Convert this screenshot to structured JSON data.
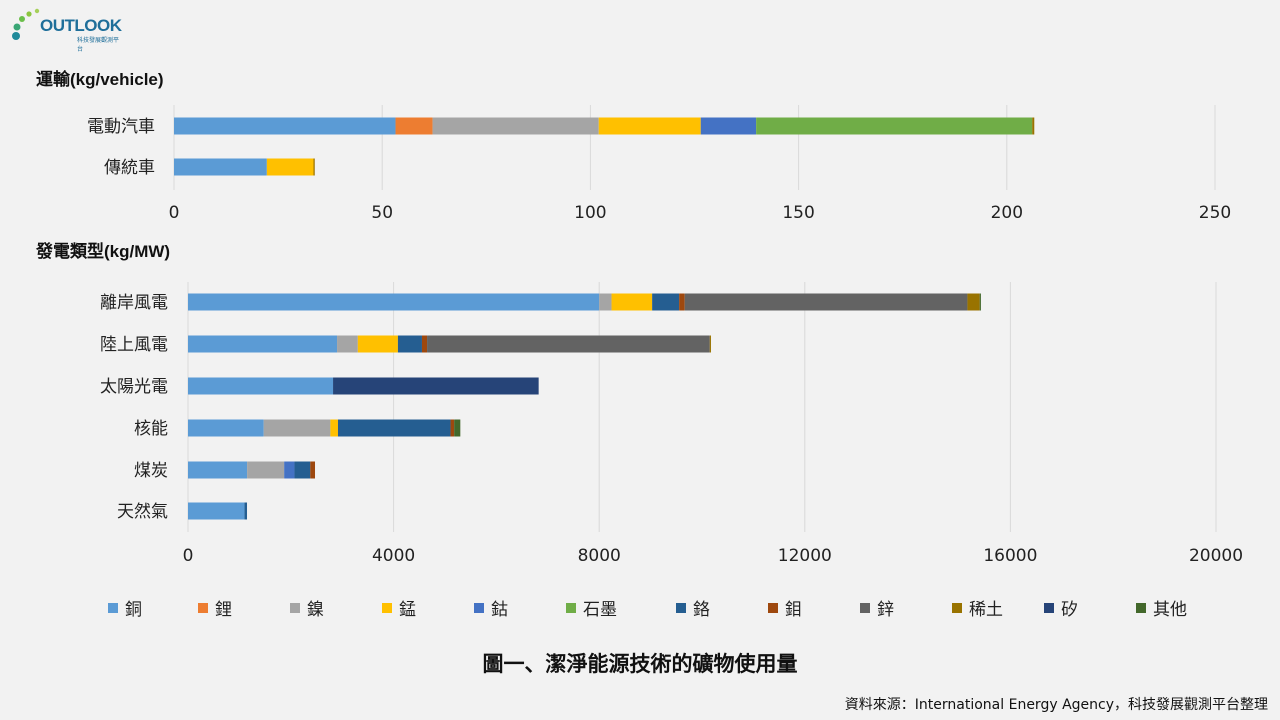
{
  "logo": {
    "text": "OUTLOOK",
    "subtitle": "科技發展觀測平台"
  },
  "caption": "圖一、潔淨能源技術的礦物使用量",
  "source": "資料來源：International Energy Agency，科技發展觀測平台整理",
  "colors": {
    "銅": "#5b9bd5",
    "鋰": "#ed7d31",
    "鎳": "#a5a5a5",
    "錳": "#ffc000",
    "鈷": "#4472c4",
    "石墨": "#70ad47",
    "鉻": "#255e91",
    "鉬": "#9e480e",
    "鋅": "#636363",
    "稀土": "#997300",
    "矽": "#264478",
    "其他": "#43682b"
  },
  "legend": [
    "銅",
    "鋰",
    "鎳",
    "錳",
    "鈷",
    "石墨",
    "鉻",
    "鉬",
    "鋅",
    "稀土",
    "矽",
    "其他"
  ],
  "chart_data": [
    {
      "type": "bar",
      "orientation": "horizontal",
      "stacked": true,
      "title": "運輸(kg/vehicle)",
      "xlim": [
        0,
        250
      ],
      "ticks": [
        "0",
        "50",
        "100",
        "150",
        "200",
        "250"
      ],
      "tick_values": [
        0,
        50,
        100,
        150,
        200,
        250
      ],
      "categories": [
        "電動汽車",
        "傳統車"
      ],
      "series": [
        {
          "name": "銅",
          "values": [
            53.2,
            22.3
          ]
        },
        {
          "name": "鋰",
          "values": [
            8.9,
            0
          ]
        },
        {
          "name": "鎳",
          "values": [
            39.9,
            0
          ]
        },
        {
          "name": "錳",
          "values": [
            24.5,
            11.2
          ]
        },
        {
          "name": "鈷",
          "values": [
            13.3,
            0
          ]
        },
        {
          "name": "石墨",
          "values": [
            66.3,
            0
          ]
        },
        {
          "name": "稀土",
          "values": [
            0.5,
            0.3
          ]
        }
      ]
    },
    {
      "type": "bar",
      "orientation": "horizontal",
      "stacked": true,
      "title": "發電類型(kg/MW)",
      "xlim": [
        0,
        20000
      ],
      "ticks": [
        "0",
        "4000",
        "8000",
        "12000",
        "16000",
        "20000"
      ],
      "tick_values": [
        0,
        4000,
        8000,
        12000,
        16000,
        20000
      ],
      "categories": [
        "離岸風電",
        "陸上風電",
        "太陽光電",
        "核能",
        "煤炭",
        "天然氣"
      ],
      "series": [
        {
          "name": "銅",
          "values": [
            8000,
            2900,
            2822,
            1473,
            1150,
            1100
          ]
        },
        {
          "name": "鎳",
          "values": [
            240,
            404,
            0,
            1297,
            721,
            0
          ]
        },
        {
          "name": "錳",
          "values": [
            790,
            780,
            0,
            148,
            0,
            0
          ]
        },
        {
          "name": "鈷",
          "values": [
            0,
            0,
            0,
            0,
            200,
            0
          ]
        },
        {
          "name": "鉻",
          "values": [
            525,
            468,
            0,
            2190,
            308,
            48
          ]
        },
        {
          "name": "鉬",
          "values": [
            109,
            99,
            0,
            70,
            92,
            0
          ]
        },
        {
          "name": "鋅",
          "values": [
            5500,
            5500,
            0,
            0,
            0,
            0
          ]
        },
        {
          "name": "稀土",
          "values": [
            239,
            14,
            0,
            0,
            0,
            0
          ]
        },
        {
          "name": "矽",
          "values": [
            0,
            0,
            4000,
            0,
            0,
            0
          ]
        },
        {
          "name": "其他",
          "values": [
            20,
            0,
            0,
            120,
            0,
            0
          ]
        }
      ]
    }
  ]
}
